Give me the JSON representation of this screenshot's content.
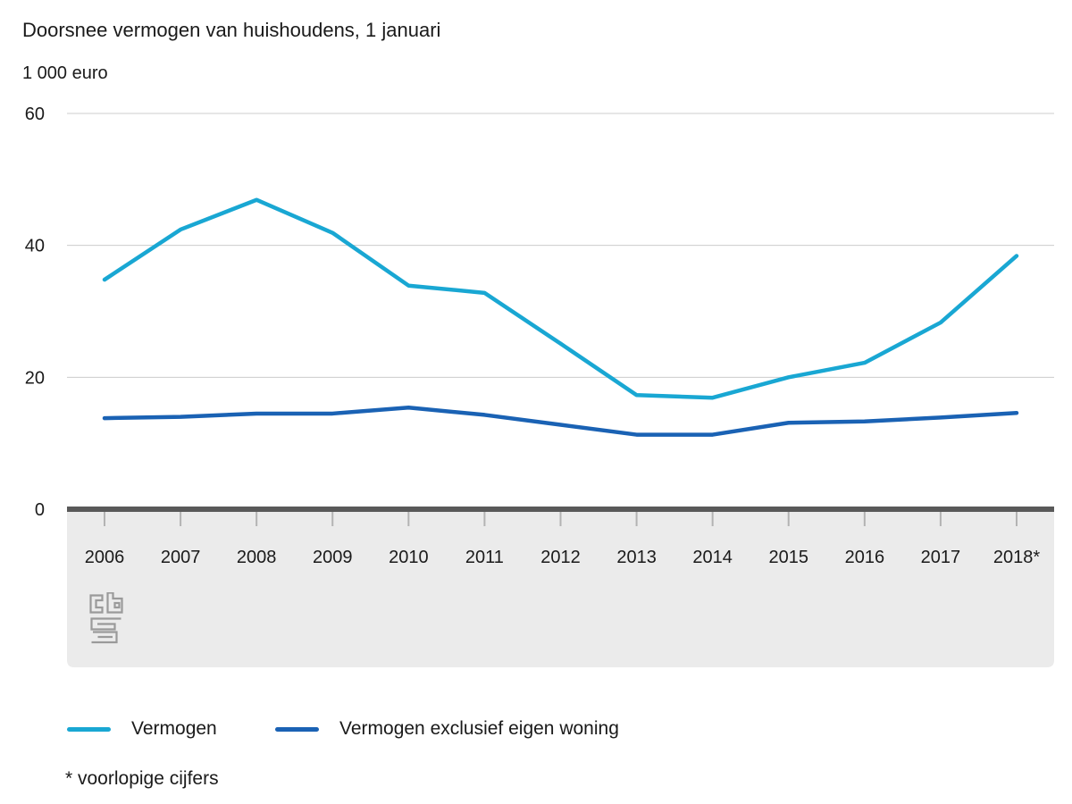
{
  "header": {
    "title": "Doorsnee vermogen van huishoudens, 1 januari",
    "unit_label": "1 000 euro"
  },
  "chart_data": {
    "type": "line",
    "title": "Doorsnee vermogen van huishoudens, 1 januari",
    "ylabel": "1 000 euro",
    "xlabel": "",
    "categories": [
      "2006",
      "2007",
      "2008",
      "2009",
      "2010",
      "2011",
      "2012",
      "2013",
      "2014",
      "2015",
      "2016",
      "2017",
      "2018*"
    ],
    "series": [
      {
        "name": "Vermogen",
        "color": "#19a7d3",
        "values": [
          34.8,
          42.4,
          46.9,
          41.9,
          33.9,
          32.8,
          25.1,
          17.3,
          16.9,
          20.0,
          22.2,
          28.3,
          38.4
        ]
      },
      {
        "name": "Vermogen exclusief eigen woning",
        "color": "#1a62b4",
        "values": [
          13.8,
          14.0,
          14.5,
          14.5,
          15.4,
          14.3,
          12.8,
          11.3,
          11.3,
          13.1,
          13.3,
          13.9,
          14.6
        ]
      }
    ],
    "ylim": [
      0,
      60
    ],
    "yticks": [
      0,
      20,
      40,
      60
    ],
    "grid": true,
    "legend_position": "bottom"
  },
  "footnote": "* voorlopige cijfers",
  "logo_name": "cbs-logo",
  "colors": {
    "text": "#1a1a1a",
    "gridline": "#cccccc",
    "zero_axis": "#595959",
    "axis_band": "#ebebeb",
    "tick": "#b3b3b3",
    "logo": "#9a9a9a"
  }
}
